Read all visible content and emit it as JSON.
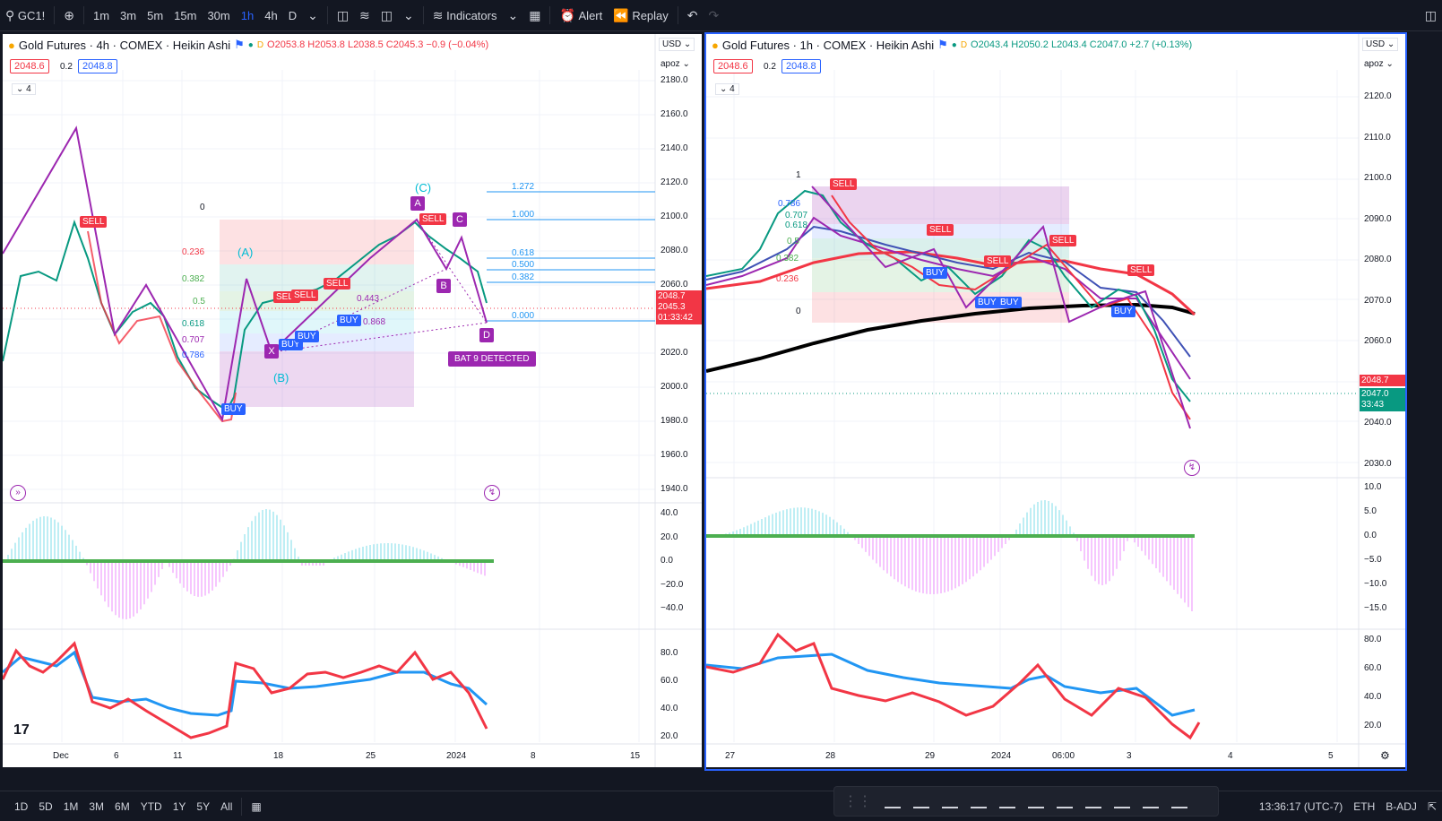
{
  "topbar": {
    "symbol": "GC1!",
    "intervals": [
      "1m",
      "3m",
      "5m",
      "15m",
      "30m",
      "1h",
      "4h",
      "D"
    ],
    "active_interval": "1h",
    "indicators_label": "Indicators",
    "alert_label": "Alert",
    "replay_label": "Replay"
  },
  "left_chart": {
    "title": "Gold Futures · 4h · COMEX · Heikin Ashi",
    "ohlc": "O2053.8 H2053.8 L2038.5 C2045.3 −0.9 (−0.04%)",
    "bid": "2048.6",
    "spread": "0.2",
    "ask": "2048.8",
    "count": "4",
    "currency": "USD",
    "scale_mode": "apoz",
    "price_ticks": [
      "2180.0",
      "2160.0",
      "2140.0",
      "2120.0",
      "2100.0",
      "2080.0",
      "2060.0",
      "2040.0",
      "2020.0",
      "2000.0",
      "1980.0",
      "1960.0",
      "1940.0"
    ],
    "last_price_top": "2048.7",
    "last_price": "2045.3",
    "countdown": "01:33:42",
    "osc_ticks": [
      "40.0",
      "20.0",
      "0.0",
      "−20.0",
      "−40.0"
    ],
    "rsi_ticks": [
      "80.0",
      "60.0",
      "40.0",
      "20.0"
    ],
    "time_ticks": [
      "Dec",
      "6",
      "11",
      "18",
      "25",
      "2024",
      "8",
      "15"
    ],
    "fib_levels": [
      "1.272",
      "1.000",
      "0.618",
      "0.500",
      "0.382",
      "0.000"
    ],
    "fib_left": [
      "0",
      "0.236",
      "0.382",
      "0.5",
      "0.618",
      "0.707",
      "0.786"
    ],
    "pattern_label": "BAT 9 DETECTED",
    "pattern_points": [
      "X",
      "A",
      "B",
      "C",
      "D"
    ],
    "wave_labels": [
      "(A)",
      "(B)",
      "(C)"
    ],
    "ratios": [
      "0.443",
      "0.868"
    ]
  },
  "right_chart": {
    "title": "Gold Futures · 1h · COMEX · Heikin Ashi",
    "ohlc": "O2043.4 H2050.2 L2043.4 C2047.0 +2.7 (+0.13%)",
    "bid": "2048.6",
    "spread": "0.2",
    "ask": "2048.8",
    "count": "4",
    "currency": "USD",
    "scale_mode": "apoz",
    "price_ticks": [
      "2120.0",
      "2110.0",
      "2100.0",
      "2090.0",
      "2080.0",
      "2070.0",
      "2060.0",
      "2050.0",
      "2040.0",
      "2030.0"
    ],
    "last_price_top": "2048.7",
    "last_price": "2047.0",
    "countdown": "33:43",
    "osc_ticks": [
      "10.0",
      "5.0",
      "0.0",
      "−5.0",
      "−10.0",
      "−15.0"
    ],
    "rsi_ticks": [
      "80.0",
      "60.0",
      "40.0",
      "20.0"
    ],
    "time_ticks": [
      "27",
      "28",
      "29",
      "2024",
      "06:00",
      "3",
      "4",
      "5"
    ],
    "fib_left": [
      "1",
      "0.786",
      "0.707",
      "0.618",
      "0.5",
      "0.382",
      "0.236",
      "0"
    ]
  },
  "bottombar": {
    "ranges": [
      "1D",
      "5D",
      "1M",
      "3M",
      "6M",
      "YTD",
      "1Y",
      "5Y",
      "All"
    ],
    "clock": "13:36:17 (UTC-7)",
    "session": "ETH",
    "adj": "B-ADJ"
  },
  "tags": {
    "sell": "SELL",
    "buy": "BUY"
  },
  "colors": {
    "bg": "#131722",
    "accent": "#2962ff",
    "sell": "#f23645",
    "buy": "#2962ff",
    "pattern": "#9c27b0",
    "up": "#089981"
  }
}
